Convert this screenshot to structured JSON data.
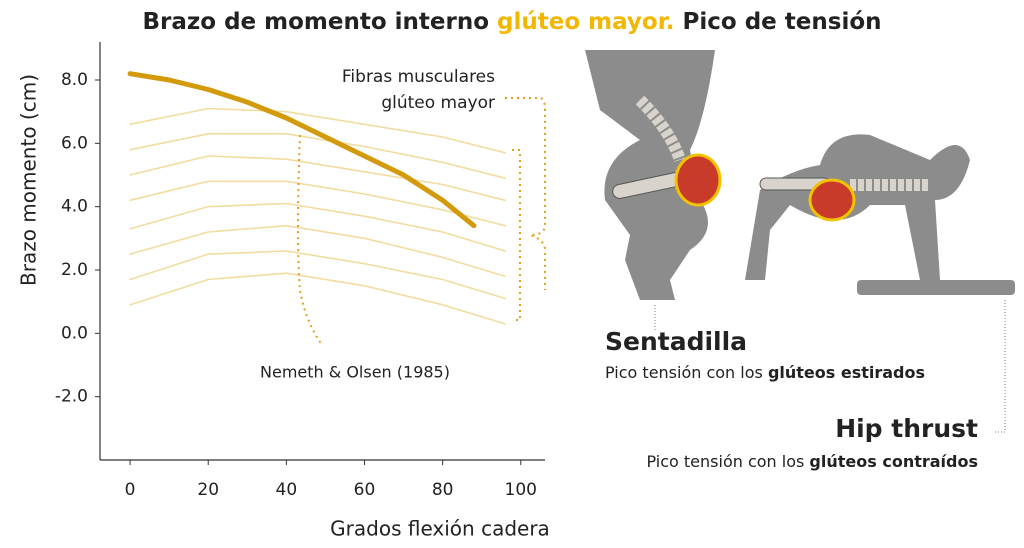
{
  "chart_data": {
    "type": "line",
    "title": {
      "part1": "Brazo de momento interno ",
      "highlight": "glúteo mayor.",
      "part2": " Pico de tensión"
    },
    "x_label": "Grados flexión cadera",
    "y_label": "Brazo momento (cm)",
    "annotations": {
      "fibers_line1": "Fibras musculares",
      "fibers_line2": "glúteo mayor",
      "source": "Nemeth & Olsen (1985)"
    },
    "xlim": [
      -7.7,
      106.2
    ],
    "ylim": [
      -4.0,
      9.2
    ],
    "xticks": [
      0,
      20,
      40,
      60,
      80,
      100
    ],
    "yticks": [
      {
        "value": 8,
        "label": "8.0"
      },
      {
        "value": 6,
        "label": "6.0"
      },
      {
        "value": 4,
        "label": "4.0"
      },
      {
        "value": 2,
        "label": "2.0"
      },
      {
        "value": 0,
        "label": "0.0"
      },
      {
        "value": -2,
        "label": "-2.0"
      }
    ],
    "series": [
      {
        "color": "#f2dca0",
        "x": [
          0,
          20,
          40,
          60,
          80,
          96
        ],
        "values": [
          0.9,
          1.7,
          1.9,
          1.5,
          0.9,
          0.3
        ]
      },
      {
        "color": "#f2dca0",
        "x": [
          0,
          20,
          40,
          60,
          80,
          96
        ],
        "values": [
          1.7,
          2.5,
          2.6,
          2.2,
          1.7,
          1.1
        ]
      },
      {
        "color": "#f2dca0",
        "x": [
          0,
          20,
          40,
          60,
          80,
          96
        ],
        "values": [
          2.5,
          3.2,
          3.4,
          3.0,
          2.4,
          1.8
        ]
      },
      {
        "color": "#f2dca0",
        "x": [
          0,
          20,
          40,
          60,
          80,
          96
        ],
        "values": [
          3.3,
          4.0,
          4.1,
          3.7,
          3.2,
          2.6
        ]
      },
      {
        "color": "#f2dca0",
        "x": [
          0,
          20,
          40,
          60,
          80,
          96
        ],
        "values": [
          4.2,
          4.8,
          4.8,
          4.4,
          3.9,
          3.4
        ]
      },
      {
        "color": "#f2dca0",
        "x": [
          0,
          20,
          40,
          60,
          80,
          96
        ],
        "values": [
          5.0,
          5.6,
          5.5,
          5.1,
          4.7,
          4.2
        ]
      },
      {
        "color": "#f2dca0",
        "x": [
          0,
          20,
          40,
          60,
          80,
          96
        ],
        "values": [
          5.8,
          6.3,
          6.3,
          5.9,
          5.4,
          4.9
        ]
      },
      {
        "color": "#f2dca0",
        "x": [
          0,
          20,
          40,
          60,
          80,
          96
        ],
        "values": [
          6.6,
          7.1,
          7.0,
          6.6,
          6.2,
          5.7
        ]
      },
      {
        "color": "#d39a0c",
        "width": 5,
        "x": [
          0,
          10,
          20,
          30,
          40,
          50,
          60,
          70,
          80,
          88
        ],
        "values": [
          8.2,
          8.0,
          7.7,
          7.3,
          6.8,
          6.2,
          5.6,
          5.0,
          4.2,
          3.4
        ]
      }
    ]
  },
  "panels": [
    {
      "title": "Sentadilla",
      "text": "Pico tensión con los ",
      "bold": "glúteos estirados"
    },
    {
      "title": "Hip thrust",
      "text": "Pico tensión con los ",
      "bold": "glúteos contraídos"
    }
  ]
}
